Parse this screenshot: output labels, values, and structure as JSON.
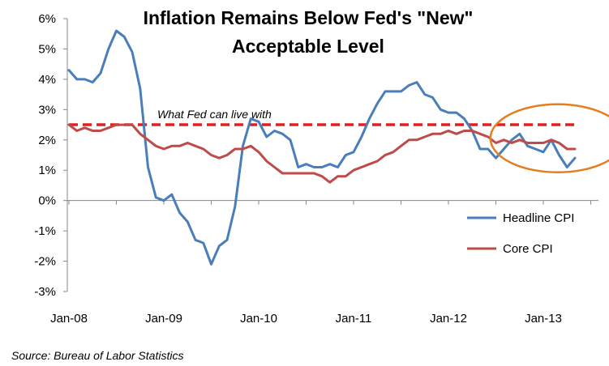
{
  "chart_data": {
    "type": "line",
    "title_lines": [
      "Inflation Remains Below Fed's \"New\"",
      "Acceptable Level"
    ],
    "source": "Source: Bureau of Labor Statistics",
    "xlabel": "",
    "ylabel": "",
    "ylim": [
      -3,
      6
    ],
    "y_ticks": [
      -3,
      -2,
      -1,
      0,
      1,
      2,
      3,
      4,
      5,
      6
    ],
    "y_tick_labels": [
      "-3%",
      "-2%",
      "-1%",
      "0%",
      "1%",
      "2%",
      "3%",
      "4%",
      "5%",
      "6%"
    ],
    "x_ticks": [
      {
        "index": 0,
        "label": "Jan-08"
      },
      {
        "index": 12,
        "label": "Jan-09"
      },
      {
        "index": 24,
        "label": "Jan-10"
      },
      {
        "index": 36,
        "label": "Jan-11"
      },
      {
        "index": 48,
        "label": "Jan-12"
      },
      {
        "index": 60,
        "label": "Jan-13"
      }
    ],
    "x_range": [
      0,
      67
    ],
    "grid": false,
    "legend_position": "right",
    "series": [
      {
        "name": "Headline CPI",
        "color": "#4a7ebb",
        "values": [
          4.3,
          4.0,
          4.0,
          3.9,
          4.2,
          5.0,
          5.6,
          5.4,
          4.9,
          3.7,
          1.1,
          0.1,
          0.0,
          0.2,
          -0.4,
          -0.7,
          -1.3,
          -1.4,
          -2.1,
          -1.5,
          -1.3,
          -0.2,
          1.8,
          2.7,
          2.6,
          2.1,
          2.3,
          2.2,
          2.0,
          1.1,
          1.2,
          1.1,
          1.1,
          1.2,
          1.1,
          1.5,
          1.6,
          2.1,
          2.7,
          3.2,
          3.6,
          3.6,
          3.6,
          3.8,
          3.9,
          3.5,
          3.4,
          3.0,
          2.9,
          2.9,
          2.7,
          2.3,
          1.7,
          1.7,
          1.4,
          1.7,
          2.0,
          2.2,
          1.8,
          1.7,
          1.6,
          2.0,
          1.5,
          1.1,
          1.4
        ]
      },
      {
        "name": "Core CPI",
        "color": "#be4b48",
        "values": [
          2.5,
          2.3,
          2.4,
          2.3,
          2.3,
          2.4,
          2.5,
          2.5,
          2.5,
          2.2,
          2.0,
          1.8,
          1.7,
          1.8,
          1.8,
          1.9,
          1.8,
          1.7,
          1.5,
          1.4,
          1.5,
          1.7,
          1.7,
          1.8,
          1.6,
          1.3,
          1.1,
          0.9,
          0.9,
          0.9,
          0.9,
          0.9,
          0.8,
          0.6,
          0.8,
          0.8,
          1.0,
          1.1,
          1.2,
          1.3,
          1.5,
          1.6,
          1.8,
          2.0,
          2.0,
          2.1,
          2.2,
          2.2,
          2.3,
          2.2,
          2.3,
          2.3,
          2.2,
          2.1,
          1.9,
          2.0,
          1.9,
          2.0,
          1.9,
          1.9,
          1.9,
          2.0,
          1.9,
          1.7,
          1.7
        ]
      }
    ],
    "reference_line": {
      "label": "What Fed can live with",
      "value": 2.5,
      "color": "#e0201e"
    },
    "highlight_ellipse": {
      "color": "#e57e1f",
      "x_center_index": 61,
      "y_center_value": 2.0
    }
  }
}
